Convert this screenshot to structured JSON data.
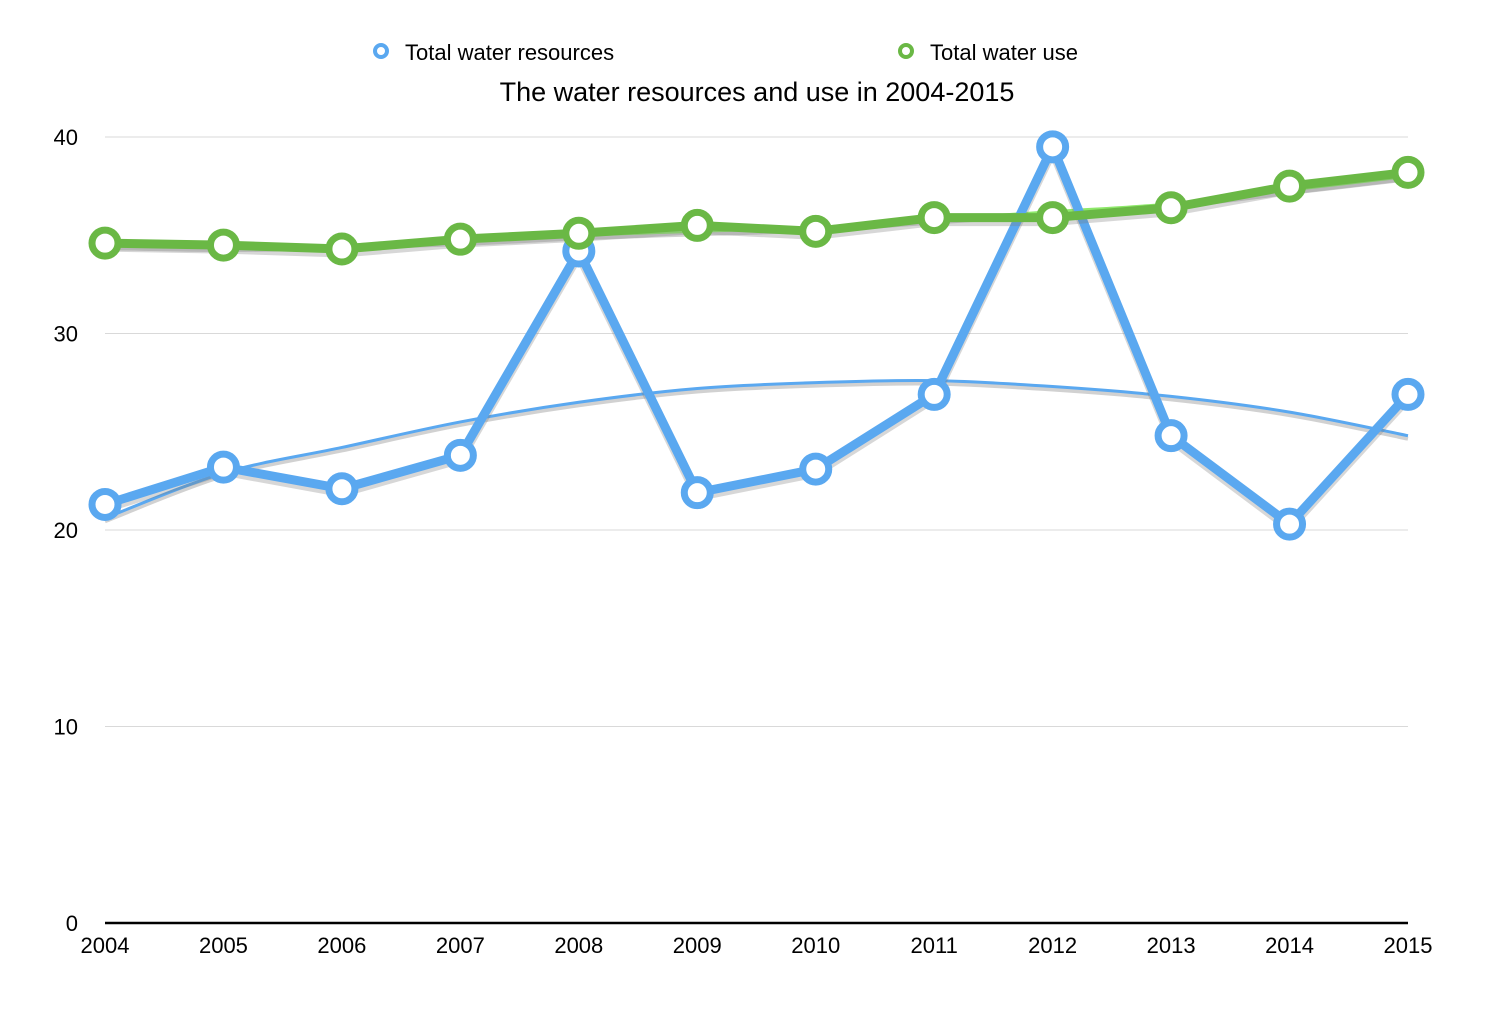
{
  "chart_data": {
    "type": "line",
    "title": "The water resources and use in 2004-2015",
    "xlabel": "",
    "ylabel": "",
    "categories": [
      "2004",
      "2005",
      "2006",
      "2007",
      "2008",
      "2009",
      "2010",
      "2011",
      "2012",
      "2013",
      "2014",
      "2015"
    ],
    "ylim": [
      0,
      40
    ],
    "yticks": [
      "0",
      "10",
      "20",
      "30",
      "40"
    ],
    "grid": true,
    "legend_position": "top",
    "series": [
      {
        "name": "Total water resources",
        "color": "#5aa8f0",
        "values": [
          21.3,
          23.2,
          22.1,
          23.8,
          34.2,
          21.9,
          23.1,
          26.9,
          39.5,
          24.8,
          20.3,
          26.9
        ],
        "trendline": {
          "type": "polynomial",
          "values": [
            20.6,
            22.9,
            24.2,
            25.5,
            26.5,
            27.2,
            27.5,
            27.6,
            27.3,
            26.8,
            26.0,
            24.8
          ]
        }
      },
      {
        "name": "Total water use",
        "color": "#6ab845",
        "values": [
          34.6,
          34.5,
          34.3,
          34.8,
          35.1,
          35.5,
          35.2,
          35.9,
          35.9,
          36.4,
          37.5,
          38.2
        ],
        "trendline": {
          "type": "linear",
          "color": "#8ee86a",
          "values": [
            34.5,
            34.4,
            34.5,
            34.7,
            35.0,
            35.2,
            35.4,
            35.8,
            36.2,
            36.6,
            37.3,
            38.0
          ]
        }
      }
    ]
  }
}
